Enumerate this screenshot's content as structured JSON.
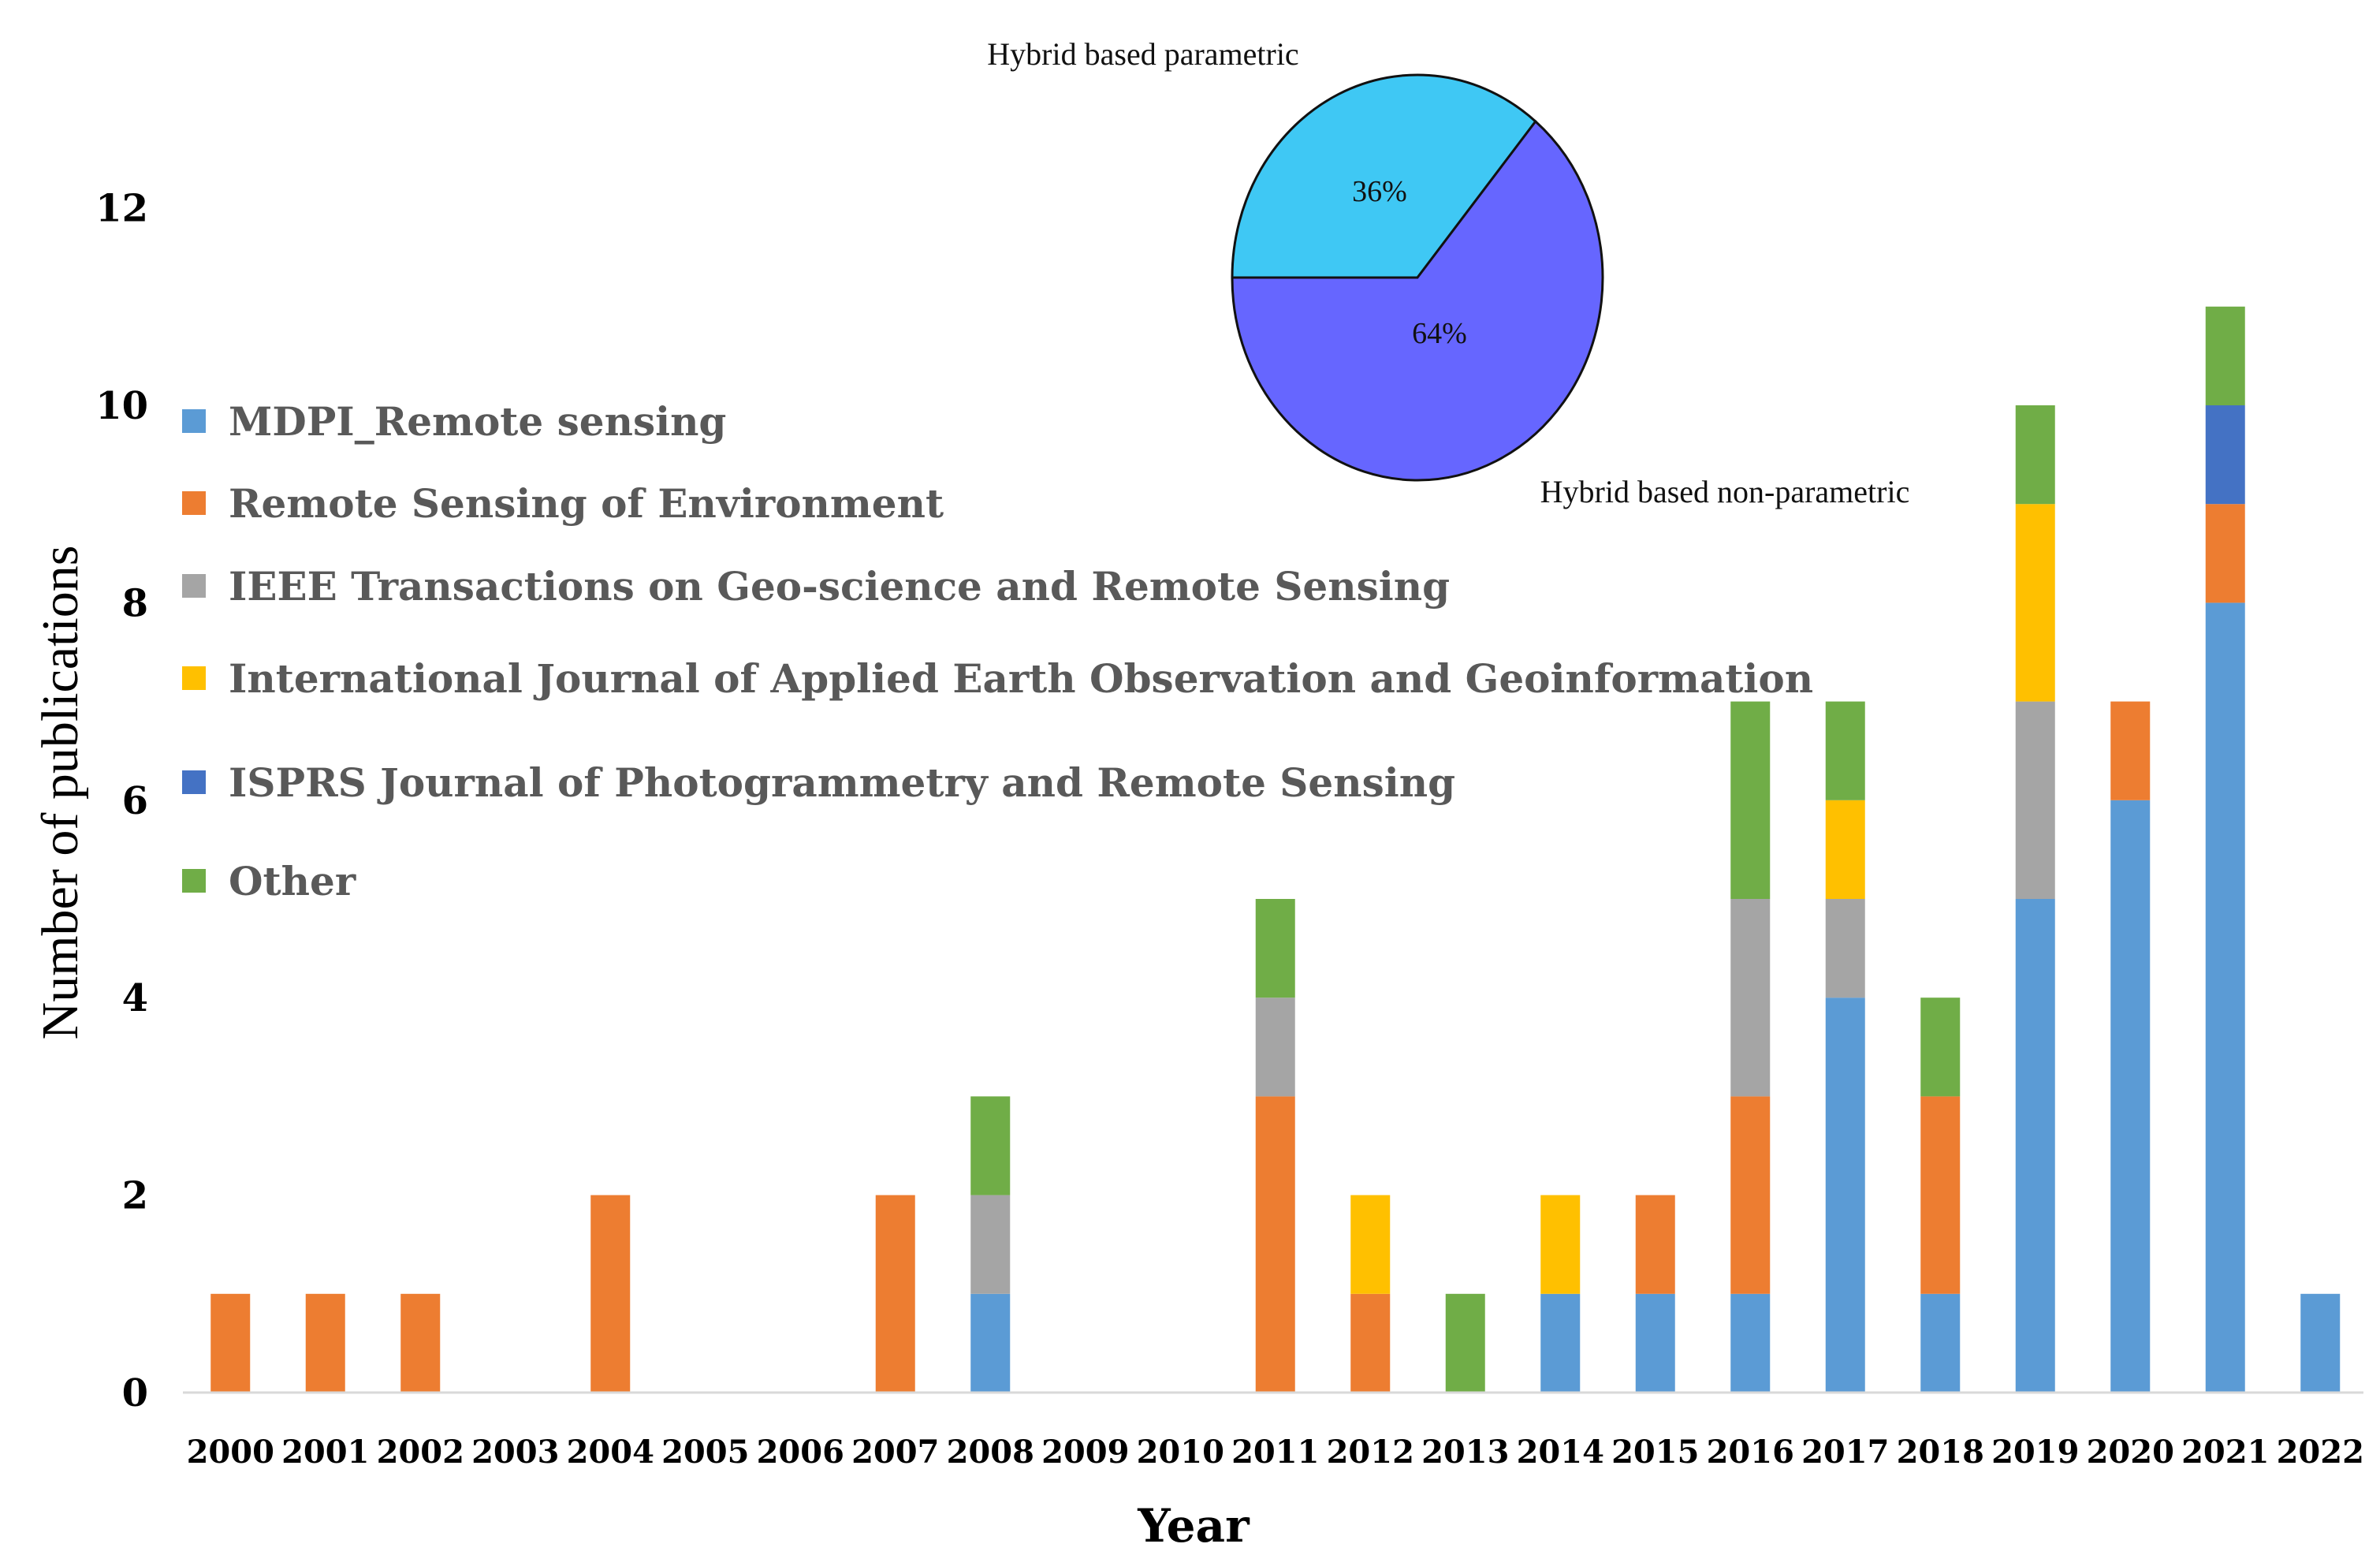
{
  "chart_data": [
    {
      "type": "bar",
      "stacked": true,
      "title": "",
      "xlabel": "Year",
      "ylabel": "Number of publications",
      "ylim": [
        0,
        12
      ],
      "yticks": [
        0,
        2,
        4,
        6,
        8,
        10,
        12
      ],
      "grid": false,
      "legend_position": "left",
      "categories": [
        "2000",
        "2001",
        "2002",
        "2003",
        "2004",
        "2005",
        "2006",
        "2007",
        "2008",
        "2009",
        "2010",
        "2011",
        "2012",
        "2013",
        "2014",
        "2015",
        "2016",
        "2017",
        "2018",
        "2019",
        "2020",
        "2021",
        "2022"
      ],
      "series": [
        {
          "name": "MDPI_Remote sensing",
          "color": "#5b9bd5",
          "values": [
            0,
            0,
            0,
            0,
            0,
            0,
            0,
            0,
            1,
            0,
            0,
            0,
            0,
            0,
            1,
            1,
            1,
            4,
            1,
            5,
            6,
            8,
            1
          ]
        },
        {
          "name": "Remote Sensing of Environment",
          "color": "#ed7d31",
          "values": [
            1,
            1,
            1,
            0,
            2,
            0,
            0,
            2,
            0,
            0,
            0,
            3,
            1,
            0,
            0,
            1,
            2,
            0,
            2,
            0,
            1,
            1,
            0
          ]
        },
        {
          "name": "IEEE Transactions on Geo-science and Remote Sensing",
          "color": "#a5a5a5",
          "values": [
            0,
            0,
            0,
            0,
            0,
            0,
            0,
            0,
            1,
            0,
            0,
            1,
            0,
            0,
            0,
            0,
            2,
            1,
            0,
            2,
            0,
            0,
            0
          ]
        },
        {
          "name": "International Journal of Applied Earth Observation and Geoinformation",
          "color": "#ffc000",
          "values": [
            0,
            0,
            0,
            0,
            0,
            0,
            0,
            0,
            0,
            0,
            0,
            0,
            1,
            0,
            1,
            0,
            0,
            1,
            0,
            2,
            0,
            0,
            0
          ]
        },
        {
          "name": "ISPRS Journal of Photogrammetry and  Remote Sensing",
          "color": "#4472c4",
          "values": [
            0,
            0,
            0,
            0,
            0,
            0,
            0,
            0,
            0,
            0,
            0,
            0,
            0,
            0,
            0,
            0,
            0,
            0,
            0,
            0,
            0,
            1,
            0
          ]
        },
        {
          "name": "Other",
          "color": "#70ad47",
          "values": [
            0,
            0,
            0,
            0,
            0,
            0,
            0,
            0,
            1,
            0,
            0,
            1,
            0,
            1,
            0,
            0,
            2,
            1,
            1,
            1,
            0,
            1,
            0
          ]
        }
      ]
    },
    {
      "type": "pie",
      "title": "",
      "slices": [
        {
          "label": "Hybrid based parametric",
          "value": 36,
          "display": "36%",
          "color": "#3fc8f4"
        },
        {
          "label": "Hybrid based non-parametric",
          "value": 64,
          "display": "64%",
          "color": "#6666ff"
        }
      ]
    }
  ]
}
